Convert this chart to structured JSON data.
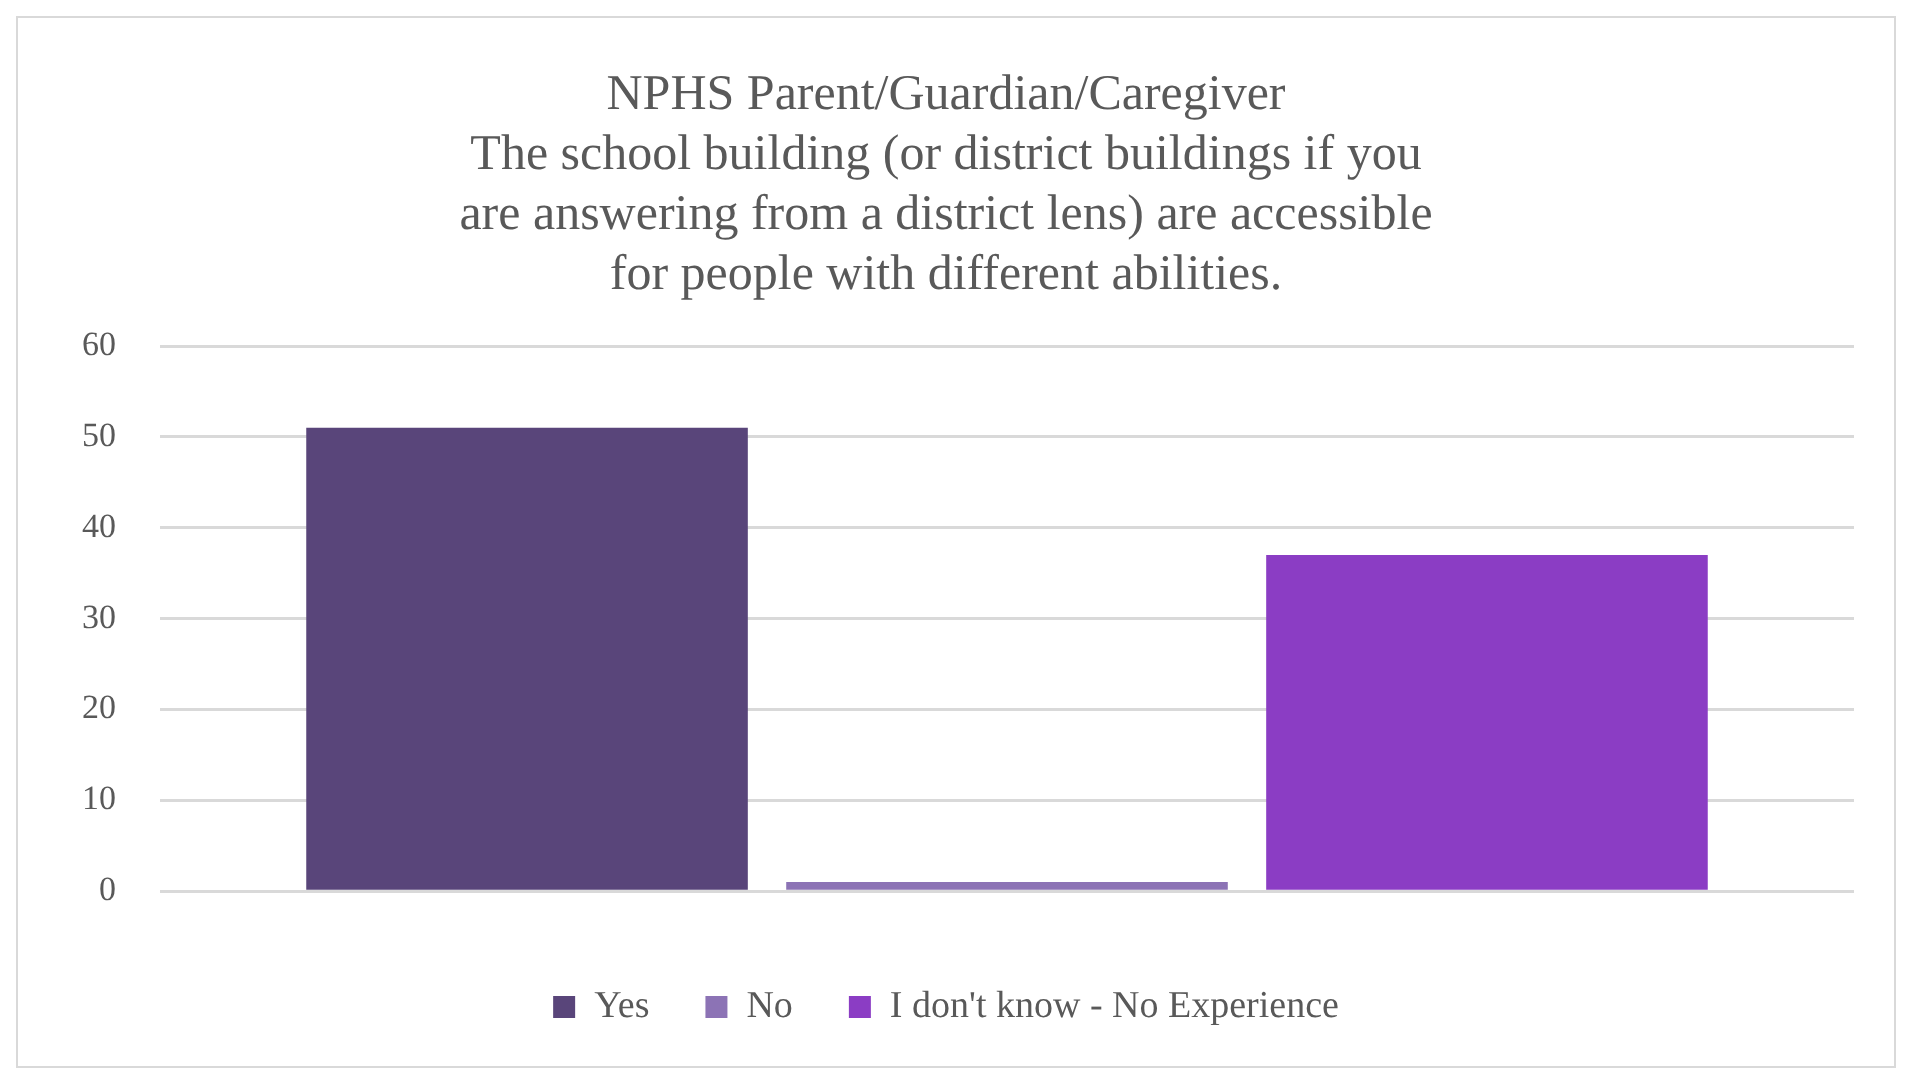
{
  "chart_data": {
    "type": "bar",
    "title": "NPHS Parent/Guardian/Caregiver\nThe school building (or district buildings if you are answering from a district lens) are accessible for people with different abilities.",
    "categories": [
      null
    ],
    "series": [
      {
        "name": "Yes",
        "color": "#59457a",
        "values": [
          51
        ]
      },
      {
        "name": "No",
        "color": "#8c73b5",
        "values": [
          1
        ]
      },
      {
        "name": "I don't know - No Experience",
        "color": "#8b3dc4",
        "values": [
          37
        ]
      }
    ],
    "ylim": [
      0,
      60
    ],
    "yticks": [
      0,
      10,
      20,
      30,
      40,
      50,
      60
    ],
    "grid": "y",
    "legend": "bottom"
  }
}
